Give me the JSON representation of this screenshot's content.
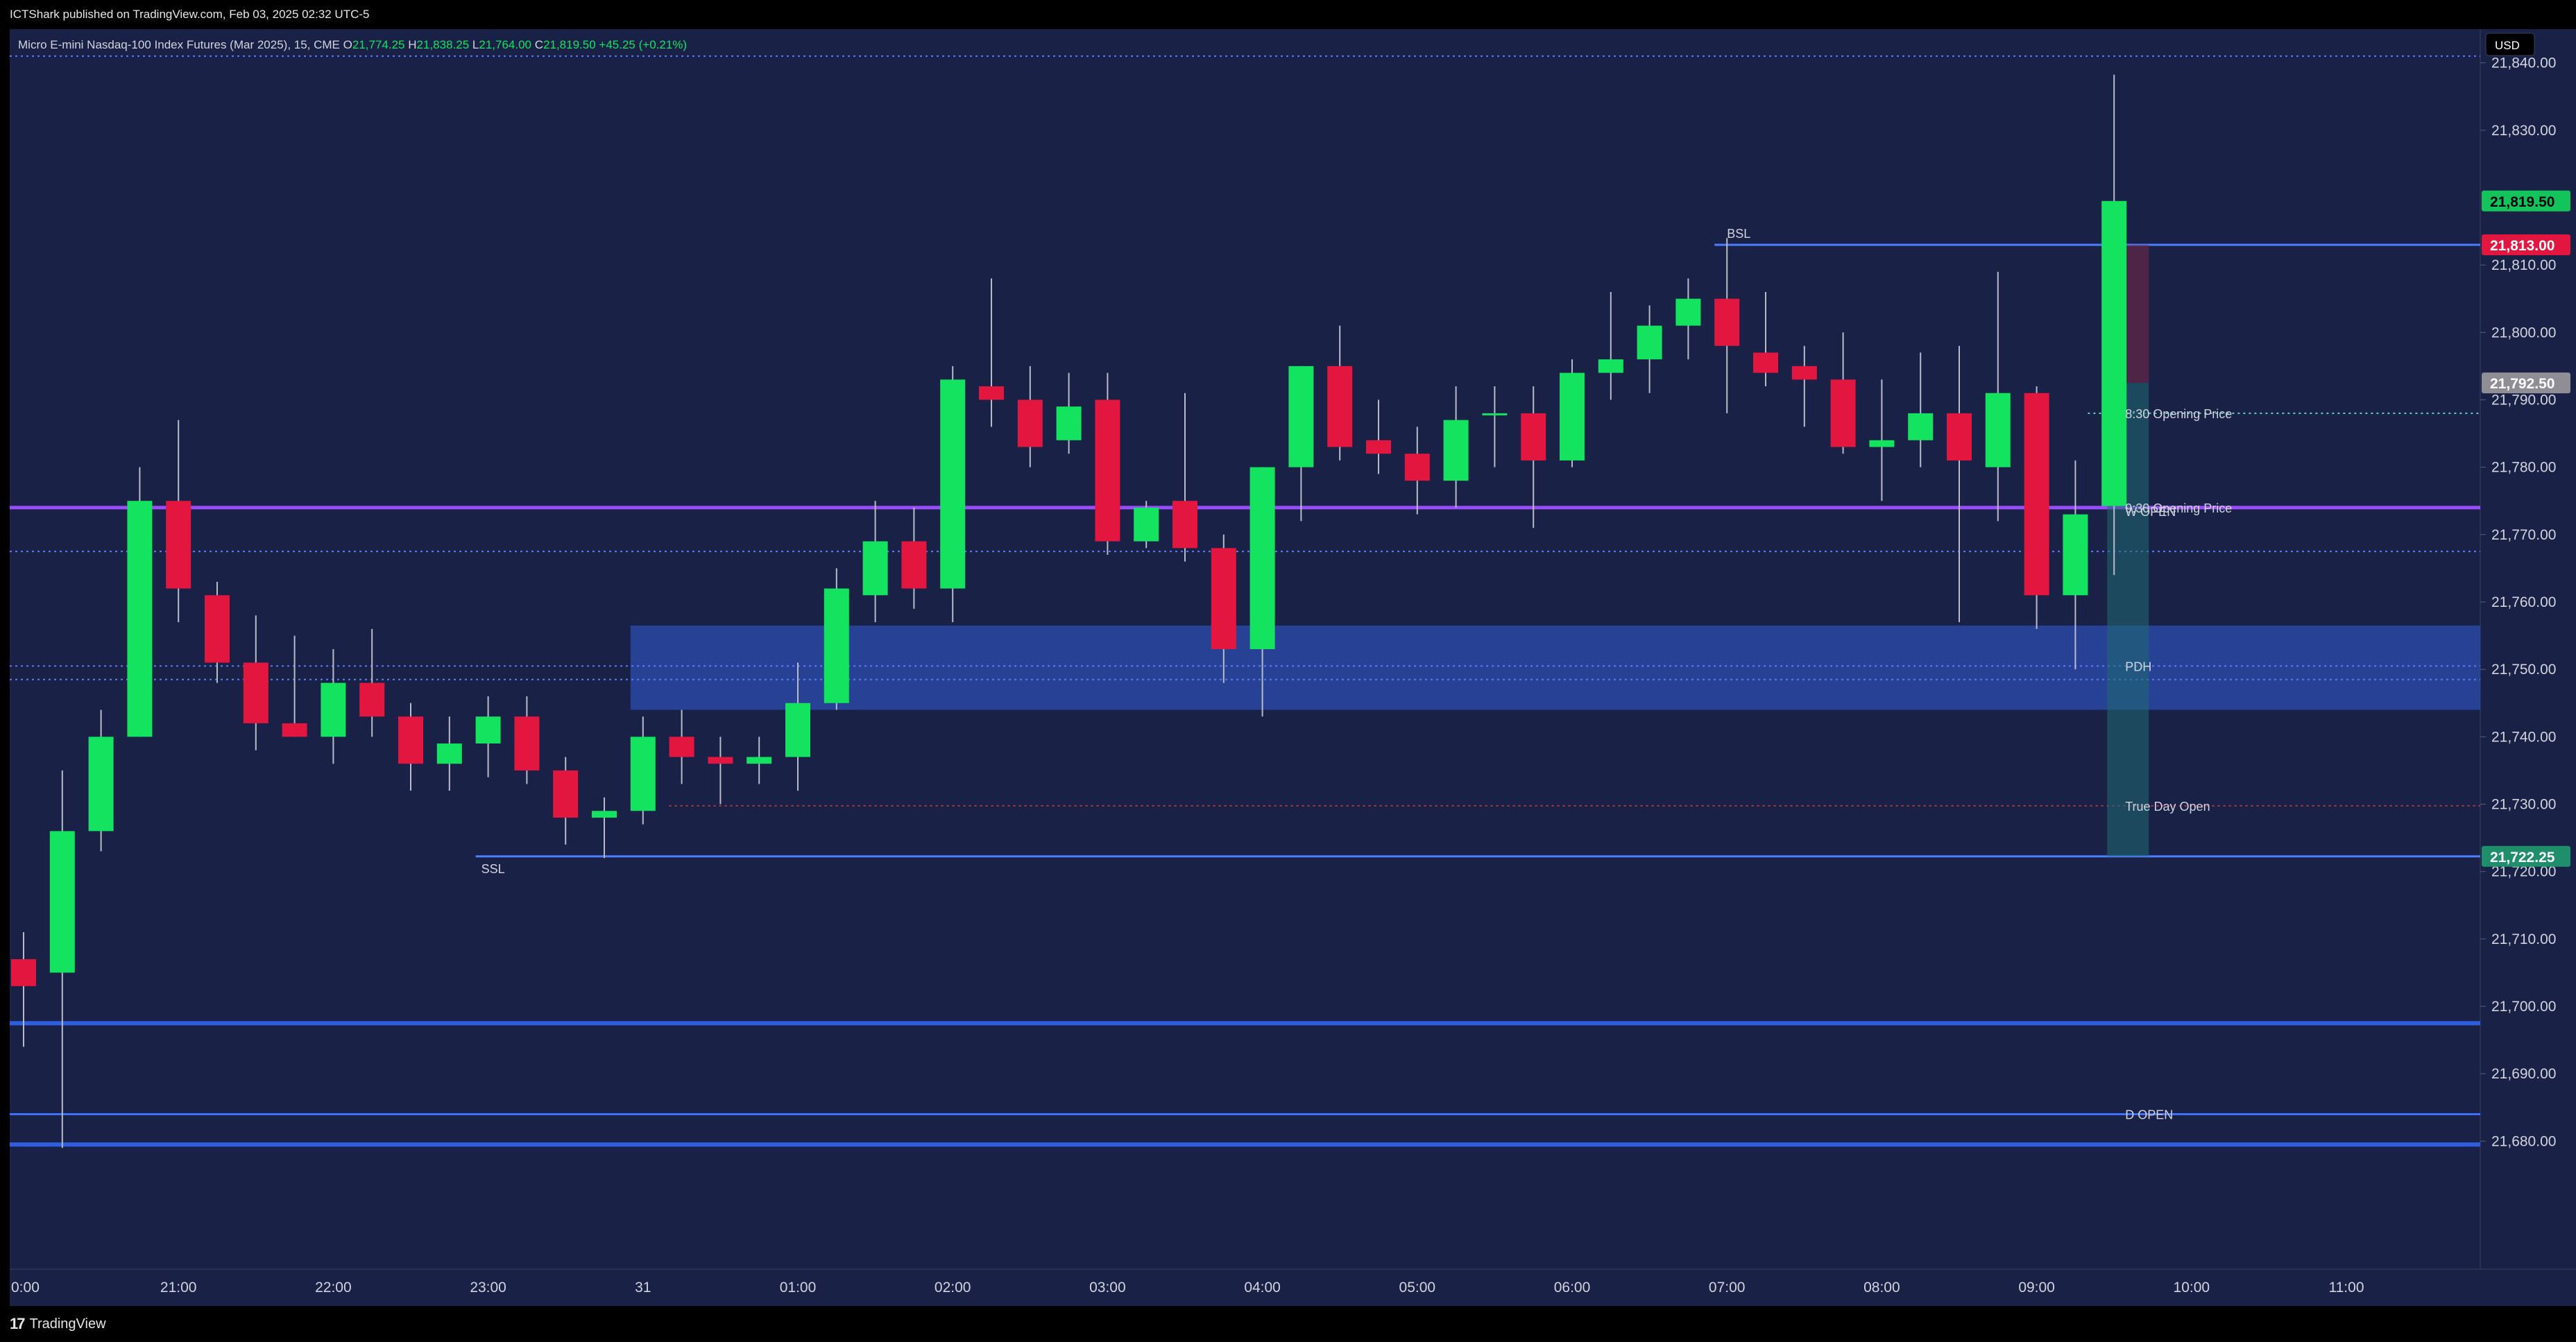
{
  "header": {
    "published_by": "ICTShark published on TradingView.com, Feb 03, 2025 02:32 UTC-5"
  },
  "footer": {
    "brand": "TradingView",
    "logo_glyph": "17"
  },
  "legend": {
    "symbol": "Micro E-mini Nasdaq-100 Index Futures (Mar 2025), 15, CME",
    "o_label": "O",
    "o_value": "21,774.25",
    "h_label": "H",
    "h_value": "21,838.25",
    "l_label": "L",
    "l_value": "21,764.00",
    "c_label": "C",
    "c_value": "21,819.50",
    "change": "+45.25 (+0.21%)"
  },
  "colors": {
    "background": "#1a2147",
    "up": "#13e35f",
    "down": "#e3163f",
    "wick": "#b8bcc8",
    "level_blue": "#2962ff",
    "purple": "#9a4dff",
    "zone": "#2a4aa8",
    "axis_text": "#d1d4dc"
  },
  "chart_data": {
    "type": "candlestick",
    "currency": "USD",
    "ylim": [
      21661,
      21845
    ],
    "y_ticks": [
      21680,
      21690,
      21700,
      21710,
      21720,
      21730,
      21740,
      21750,
      21760,
      21770,
      21780,
      21790,
      21800,
      21810,
      21830,
      21840
    ],
    "y_tick_labels": [
      "21,680.00",
      "21,690.00",
      "21,700.00",
      "21,710.00",
      "21,720.00",
      "21,730.00",
      "21,740.00",
      "21,750.00",
      "21,760.00",
      "21,770.00",
      "21,780.00",
      "21,790.00",
      "21,800.00",
      "21,810.00",
      "21,830.00",
      "21,840.00"
    ],
    "x_tick_labels": [
      {
        "label": "0:00",
        "bar": 0
      },
      {
        "label": "21:00",
        "bar": 4
      },
      {
        "label": "22:00",
        "bar": 8
      },
      {
        "label": "23:00",
        "bar": 12
      },
      {
        "label": "31",
        "bar": 16
      },
      {
        "label": "01:00",
        "bar": 20
      },
      {
        "label": "02:00",
        "bar": 24
      },
      {
        "label": "03:00",
        "bar": 28
      },
      {
        "label": "04:00",
        "bar": 32
      },
      {
        "label": "05:00",
        "bar": 36
      },
      {
        "label": "06:00",
        "bar": 40
      },
      {
        "label": "07:00",
        "bar": 44
      },
      {
        "label": "08:00",
        "bar": 48
      },
      {
        "label": "09:00",
        "bar": 52
      },
      {
        "label": "10:00",
        "bar": 56
      },
      {
        "label": "11:00",
        "bar": 60
      }
    ],
    "candles": [
      {
        "o": 21707.0,
        "h": 21711.0,
        "l": 21694.0,
        "c": 21703.0
      },
      {
        "o": 21705.0,
        "h": 21735.0,
        "l": 21679.0,
        "c": 21726.0
      },
      {
        "o": 21726.0,
        "h": 21744.0,
        "l": 21723.0,
        "c": 21740.0
      },
      {
        "o": 21740.0,
        "h": 21780.0,
        "l": 21740.0,
        "c": 21775.0
      },
      {
        "o": 21775.0,
        "h": 21787.0,
        "l": 21757.0,
        "c": 21762.0
      },
      {
        "o": 21761.0,
        "h": 21763.0,
        "l": 21748.0,
        "c": 21751.0
      },
      {
        "o": 21751.0,
        "h": 21758.0,
        "l": 21738.0,
        "c": 21742.0
      },
      {
        "o": 21742.0,
        "h": 21755.0,
        "l": 21740.0,
        "c": 21740.0
      },
      {
        "o": 21740.0,
        "h": 21753.0,
        "l": 21736.0,
        "c": 21748.0
      },
      {
        "o": 21748.0,
        "h": 21756.0,
        "l": 21740.0,
        "c": 21743.0
      },
      {
        "o": 21743.0,
        "h": 21745.0,
        "l": 21732.0,
        "c": 21736.0
      },
      {
        "o": 21736.0,
        "h": 21743.0,
        "l": 21732.0,
        "c": 21739.0
      },
      {
        "o": 21739.0,
        "h": 21746.0,
        "l": 21734.0,
        "c": 21743.0
      },
      {
        "o": 21743.0,
        "h": 21746.0,
        "l": 21733.0,
        "c": 21735.0
      },
      {
        "o": 21735.0,
        "h": 21737.0,
        "l": 21724.0,
        "c": 21728.0
      },
      {
        "o": 21728.0,
        "h": 21731.0,
        "l": 21722.0,
        "c": 21729.0
      },
      {
        "o": 21729.0,
        "h": 21743.0,
        "l": 21727.0,
        "c": 21740.0
      },
      {
        "o": 21740.0,
        "h": 21744.0,
        "l": 21733.0,
        "c": 21737.0
      },
      {
        "o": 21737.0,
        "h": 21740.0,
        "l": 21730.0,
        "c": 21736.0
      },
      {
        "o": 21736.0,
        "h": 21740.0,
        "l": 21733.0,
        "c": 21737.0
      },
      {
        "o": 21737.0,
        "h": 21751.0,
        "l": 21732.0,
        "c": 21745.0
      },
      {
        "o": 21745.0,
        "h": 21765.0,
        "l": 21744.0,
        "c": 21762.0
      },
      {
        "o": 21761.0,
        "h": 21775.0,
        "l": 21757.0,
        "c": 21769.0
      },
      {
        "o": 21769.0,
        "h": 21774.0,
        "l": 21759.0,
        "c": 21762.0
      },
      {
        "o": 21762.0,
        "h": 21795.0,
        "l": 21757.0,
        "c": 21793.0
      },
      {
        "o": 21792.0,
        "h": 21808.0,
        "l": 21786.0,
        "c": 21790.0
      },
      {
        "o": 21790.0,
        "h": 21795.0,
        "l": 21780.0,
        "c": 21783.0
      },
      {
        "o": 21784.0,
        "h": 21794.0,
        "l": 21782.0,
        "c": 21789.0
      },
      {
        "o": 21790.0,
        "h": 21794.0,
        "l": 21767.0,
        "c": 21769.0
      },
      {
        "o": 21769.0,
        "h": 21775.0,
        "l": 21768.0,
        "c": 21774.0
      },
      {
        "o": 21775.0,
        "h": 21791.0,
        "l": 21766.0,
        "c": 21768.0
      },
      {
        "o": 21768.0,
        "h": 21770.0,
        "l": 21748.0,
        "c": 21753.0
      },
      {
        "o": 21753.0,
        "h": 21780.0,
        "l": 21743.0,
        "c": 21780.0
      },
      {
        "o": 21780.0,
        "h": 21795.0,
        "l": 21772.0,
        "c": 21795.0
      },
      {
        "o": 21795.0,
        "h": 21801.0,
        "l": 21781.0,
        "c": 21783.0
      },
      {
        "o": 21784.0,
        "h": 21790.0,
        "l": 21779.0,
        "c": 21782.0
      },
      {
        "o": 21782.0,
        "h": 21786.0,
        "l": 21773.0,
        "c": 21778.0
      },
      {
        "o": 21778.0,
        "h": 21792.0,
        "l": 21774.0,
        "c": 21787.0
      },
      {
        "o": 21788.0,
        "h": 21792.0,
        "l": 21780.0,
        "c": 21788.0
      },
      {
        "o": 21788.0,
        "h": 21792.0,
        "l": 21771.0,
        "c": 21781.0
      },
      {
        "o": 21781.0,
        "h": 21796.0,
        "l": 21780.0,
        "c": 21794.0
      },
      {
        "o": 21794.0,
        "h": 21806.0,
        "l": 21790.0,
        "c": 21796.0
      },
      {
        "o": 21796.0,
        "h": 21804.0,
        "l": 21791.0,
        "c": 21801.0
      },
      {
        "o": 21801.0,
        "h": 21808.0,
        "l": 21796.0,
        "c": 21805.0
      },
      {
        "o": 21805.0,
        "h": 21814.0,
        "l": 21788.0,
        "c": 21798.0
      },
      {
        "o": 21797.0,
        "h": 21806.0,
        "l": 21792.0,
        "c": 21794.0
      },
      {
        "o": 21795.0,
        "h": 21798.0,
        "l": 21786.0,
        "c": 21793.0
      },
      {
        "o": 21793.0,
        "h": 21800.0,
        "l": 21782.0,
        "c": 21783.0
      },
      {
        "o": 21783.0,
        "h": 21793.0,
        "l": 21775.0,
        "c": 21784.0
      },
      {
        "o": 21784.0,
        "h": 21797.0,
        "l": 21780.0,
        "c": 21788.0
      },
      {
        "o": 21788.0,
        "h": 21798.0,
        "l": 21757.0,
        "c": 21781.0
      },
      {
        "o": 21780.0,
        "h": 21809.0,
        "l": 21772.0,
        "c": 21791.0
      },
      {
        "o": 21791.0,
        "h": 21792.0,
        "l": 21756.0,
        "c": 21761.0
      },
      {
        "o": 21761.0,
        "h": 21781.0,
        "l": 21750.0,
        "c": 21773.0
      },
      {
        "o": 21774.25,
        "h": 21838.25,
        "l": 21764.0,
        "c": 21819.5
      }
    ],
    "levels": [
      {
        "kind": "BSL",
        "price": 21813.0,
        "from_bar": 44,
        "label": "BSL"
      },
      {
        "kind": "SSL",
        "price": 21722.25,
        "from_bar": 12,
        "label": "SSL"
      },
      {
        "kind": "opening",
        "price": 21788.0,
        "from_bar": 53,
        "label": "8:30 Opening Price"
      },
      {
        "kind": "opening",
        "price": 21774.0,
        "from_bar": 53,
        "label": "9:30 Opening Price"
      },
      {
        "kind": "w_open",
        "price": 21774.0,
        "from_bar": 0,
        "label": "W OPEN"
      },
      {
        "kind": "pdh",
        "price": 21750.5,
        "from_bar": 0,
        "label": "PDH"
      },
      {
        "kind": "true_day_open",
        "price": 21729.75,
        "from_bar": 17,
        "label": "True Day Open"
      },
      {
        "kind": "d_open",
        "price": 21684.0,
        "from_bar": 0,
        "label": "D OPEN"
      },
      {
        "kind": "blue_level",
        "price": 21697.5,
        "from_bar": 0,
        "label": ""
      },
      {
        "kind": "blue_level",
        "price": 21679.5,
        "from_bar": 0,
        "label": ""
      },
      {
        "kind": "dotted_top",
        "price": 21841.0,
        "from_bar": 0,
        "label": ""
      },
      {
        "kind": "dotted_mid",
        "price": 21767.5,
        "from_bar": 0,
        "label": ""
      },
      {
        "kind": "dotted_low",
        "price": 21748.5,
        "from_bar": 0,
        "label": ""
      }
    ],
    "zone": {
      "top": 21756.5,
      "bottom": 21744.0,
      "from_bar": 16,
      "label": ""
    },
    "projection": {
      "top": 21813.0,
      "bottom": 21722.25,
      "entry": 21792.5
    },
    "price_tags": [
      {
        "price": 21819.5,
        "label": "21,819.50",
        "kind": "up"
      },
      {
        "price": 21813.0,
        "label": "21,813.00",
        "kind": "down"
      },
      {
        "price": 21792.5,
        "label": "21,792.50",
        "kind": "gray"
      },
      {
        "price": 21722.25,
        "label": "21,722.25",
        "kind": "teal"
      }
    ]
  }
}
